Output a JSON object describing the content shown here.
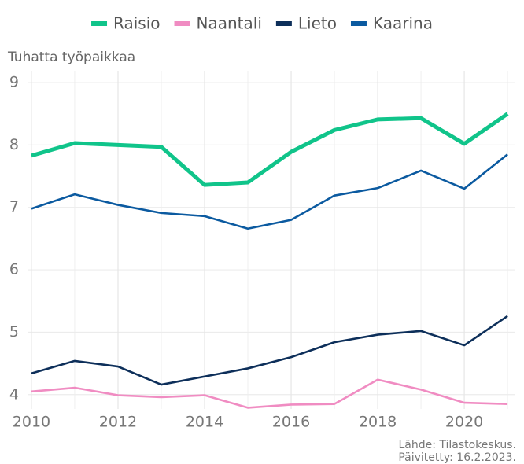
{
  "chart_data": {
    "type": "line",
    "y_axis_label": "Tuhatta työpaikkaa",
    "caption": [
      "Lähde: Tilastokeskus.",
      "Päivitetty: 16.2.2023."
    ],
    "x": [
      2010,
      2011,
      2012,
      2013,
      2014,
      2015,
      2016,
      2017,
      2018,
      2019,
      2020,
      2021
    ],
    "xlim": [
      2009.91,
      2021.18
    ],
    "xticks": [
      2010,
      2012,
      2014,
      2016,
      2018,
      2020
    ],
    "ylim": [
      3.77,
      9.19
    ],
    "yticks": [
      4,
      5,
      6,
      7,
      8,
      9
    ],
    "grid": true,
    "legend": "top",
    "series": [
      {
        "name": "Raisio",
        "color": "#10c48a",
        "values": [
          7.83,
          8.03,
          8.0,
          7.97,
          7.36,
          7.4,
          7.89,
          8.24,
          8.41,
          8.43,
          8.02,
          8.5
        ]
      },
      {
        "name": "Naantali",
        "color": "#f08cc2",
        "values": [
          4.05,
          4.11,
          3.99,
          3.96,
          3.99,
          3.79,
          3.84,
          3.85,
          4.24,
          4.08,
          3.87,
          3.85
        ]
      },
      {
        "name": "Lieto",
        "color": "#0d2f5a",
        "values": [
          4.34,
          4.54,
          4.45,
          4.16,
          4.29,
          4.42,
          4.6,
          4.84,
          4.96,
          5.02,
          4.79,
          5.26
        ]
      },
      {
        "name": "Kaarina",
        "color": "#0b5aa0",
        "values": [
          6.98,
          7.21,
          7.04,
          6.91,
          6.86,
          6.66,
          6.8,
          7.19,
          7.31,
          7.59,
          7.3,
          7.85
        ]
      }
    ]
  }
}
